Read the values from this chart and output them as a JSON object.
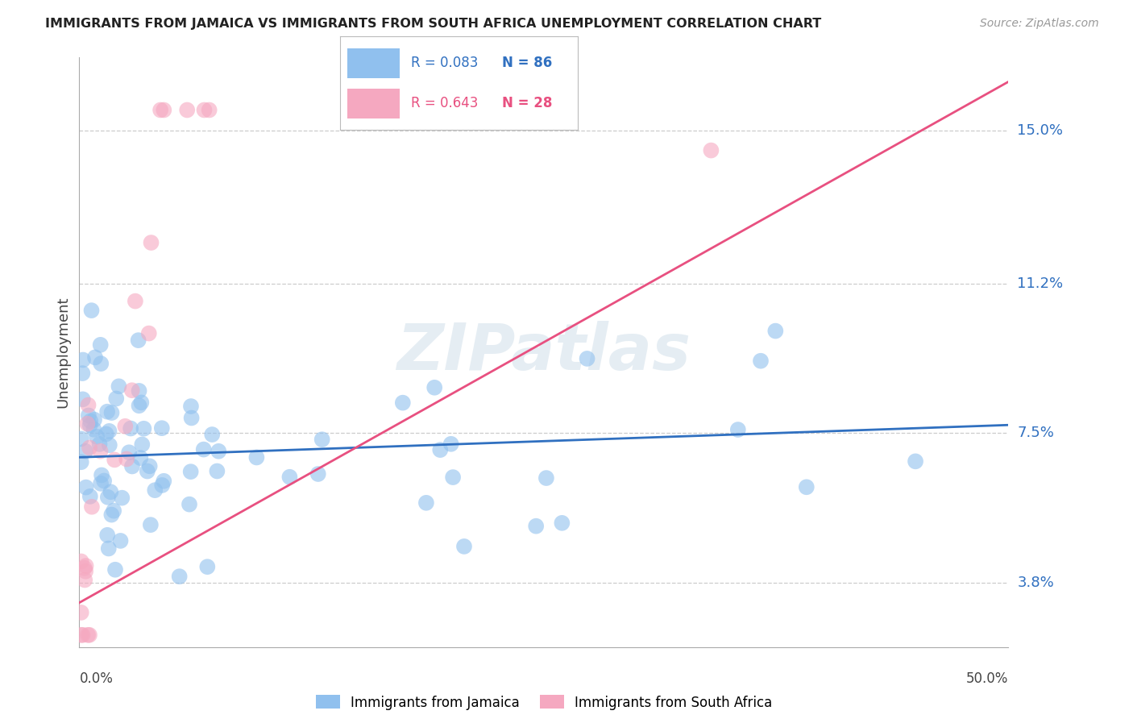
{
  "title": "IMMIGRANTS FROM JAMAICA VS IMMIGRANTS FROM SOUTH AFRICA UNEMPLOYMENT CORRELATION CHART",
  "source": "Source: ZipAtlas.com",
  "ylabel": "Unemployment",
  "ytick_labels": [
    "3.8%",
    "7.5%",
    "11.2%",
    "15.0%"
  ],
  "ytick_vals": [
    0.038,
    0.075,
    0.112,
    0.15
  ],
  "xlim": [
    0.0,
    0.5
  ],
  "ylim": [
    0.022,
    0.168
  ],
  "jamaica_color": "#90C0EE",
  "sa_color": "#F5A8C0",
  "jamaica_line_color": "#3070C0",
  "sa_line_color": "#E85080",
  "jamaica_R": "0.083",
  "jamaica_N": "86",
  "sa_R": "0.643",
  "sa_N": "28",
  "watermark": "ZIPatlas",
  "jamaica_line_x0": 0.0,
  "jamaica_line_y0": 0.069,
  "jamaica_line_x1": 0.5,
  "jamaica_line_y1": 0.077,
  "sa_line_x0": 0.0,
  "sa_line_y0": 0.033,
  "sa_line_x1": 0.5,
  "sa_line_y1": 0.162
}
